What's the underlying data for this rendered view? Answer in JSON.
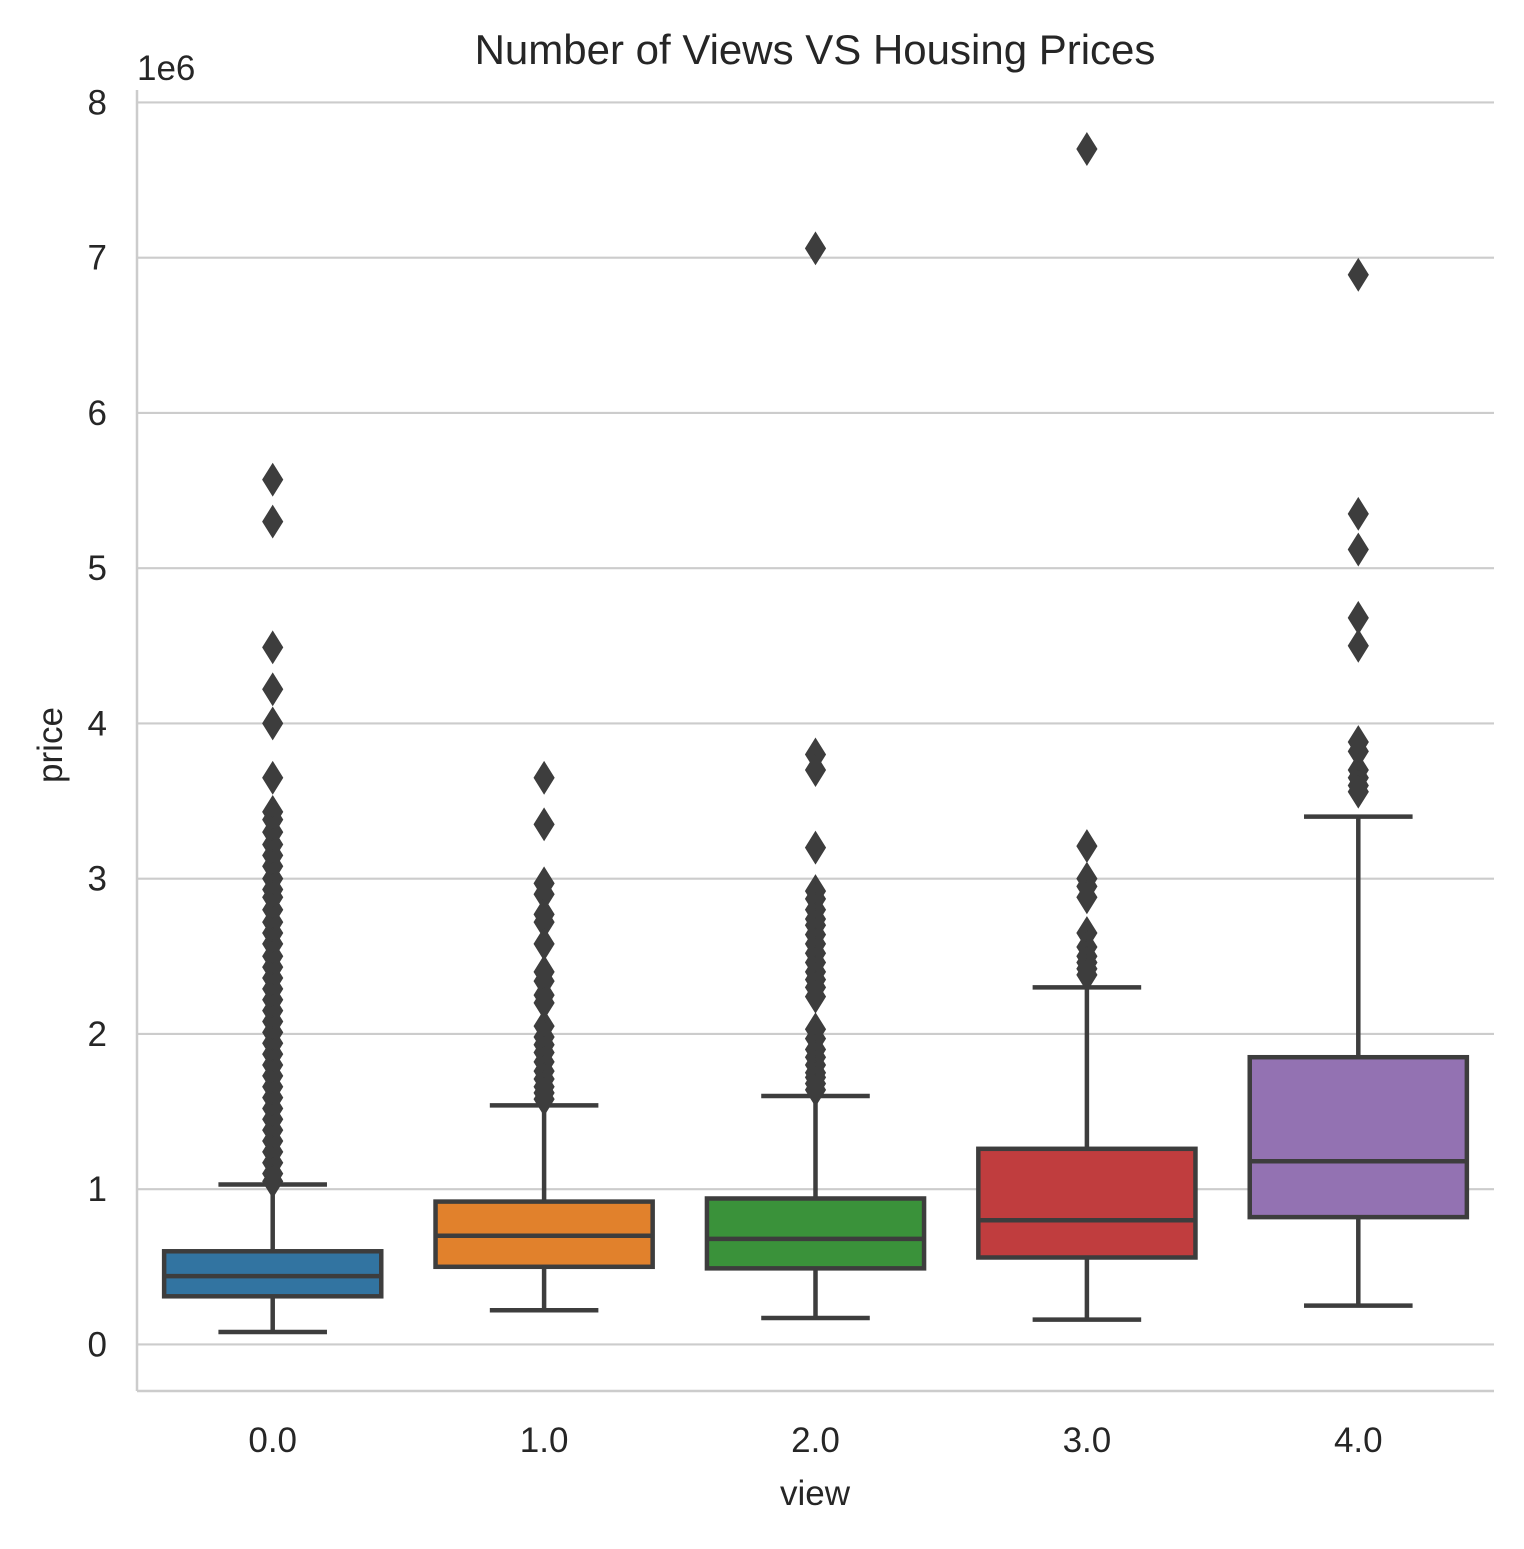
{
  "chart_data": {
    "type": "box",
    "title": "Number of Views VS Housing Prices",
    "xlabel": "view",
    "ylabel": "price",
    "y_offset_label": "1e6",
    "y_scale_multiplier": 1000000,
    "ylim": [
      -0.3,
      8.08
    ],
    "yticks": [
      0,
      1,
      2,
      3,
      4,
      5,
      6,
      7,
      8
    ],
    "ytick_labels": [
      "0",
      "1",
      "2",
      "3",
      "4",
      "5",
      "6",
      "7",
      "8"
    ],
    "categories": [
      "0.0",
      "1.0",
      "2.0",
      "3.0",
      "4.0"
    ],
    "grid": "horizontal",
    "colors": {
      "box_fills": [
        "#3274a1",
        "#e1812c",
        "#3a923a",
        "#c03d3e",
        "#9372b2"
      ],
      "edge": "#3d3d3d",
      "grid": "#cccccc",
      "spine": "#cccccc",
      "text": "#262626",
      "background": "#ffffff"
    },
    "boxes": [
      {
        "category": "0.0",
        "whisker_low": 0.08,
        "q1": 0.31,
        "median": 0.44,
        "q3": 0.6,
        "whisker_high": 1.03,
        "outliers": [
          5.57,
          5.3,
          4.49,
          4.22,
          4.0,
          3.65,
          3.43,
          3.38,
          3.3,
          3.22,
          3.15,
          3.08,
          3.0,
          2.93,
          2.88,
          2.8,
          2.72,
          2.65,
          2.58,
          2.5,
          2.43,
          2.36,
          2.29,
          2.22,
          2.15,
          2.08,
          2.01,
          1.94,
          1.87,
          1.8,
          1.73,
          1.66,
          1.59,
          1.52,
          1.45,
          1.38,
          1.31,
          1.24,
          1.17,
          1.1,
          1.05
        ]
      },
      {
        "category": "1.0",
        "whisker_low": 0.22,
        "q1": 0.5,
        "median": 0.7,
        "q3": 0.92,
        "whisker_high": 1.54,
        "outliers": [
          3.65,
          3.35,
          2.97,
          2.9,
          2.77,
          2.72,
          2.58,
          2.4,
          2.34,
          2.25,
          2.2,
          2.05,
          1.98,
          1.93,
          1.88,
          1.82,
          1.76,
          1.71,
          1.66,
          1.62,
          1.58
        ]
      },
      {
        "category": "2.0",
        "whisker_low": 0.17,
        "q1": 0.49,
        "median": 0.68,
        "q3": 0.94,
        "whisker_high": 1.6,
        "outliers": [
          7.06,
          3.8,
          3.7,
          3.2,
          2.92,
          2.87,
          2.8,
          2.74,
          2.7,
          2.64,
          2.58,
          2.52,
          2.46,
          2.4,
          2.35,
          2.3,
          2.24,
          2.03,
          1.97,
          1.9,
          1.85,
          1.8,
          1.75,
          1.72,
          1.68,
          1.64
        ]
      },
      {
        "category": "3.0",
        "whisker_low": 0.16,
        "q1": 0.56,
        "median": 0.8,
        "q3": 1.26,
        "whisker_high": 2.3,
        "outliers": [
          7.7,
          3.21,
          3.0,
          2.95,
          2.88,
          2.65,
          2.56,
          2.5,
          2.46,
          2.42,
          2.38
        ]
      },
      {
        "category": "4.0",
        "whisker_low": 0.25,
        "q1": 0.82,
        "median": 1.18,
        "q3": 1.85,
        "whisker_high": 3.4,
        "outliers": [
          6.89,
          5.35,
          5.12,
          4.68,
          4.5,
          3.88,
          3.82,
          3.7,
          3.65,
          3.6,
          3.56
        ]
      }
    ]
  }
}
